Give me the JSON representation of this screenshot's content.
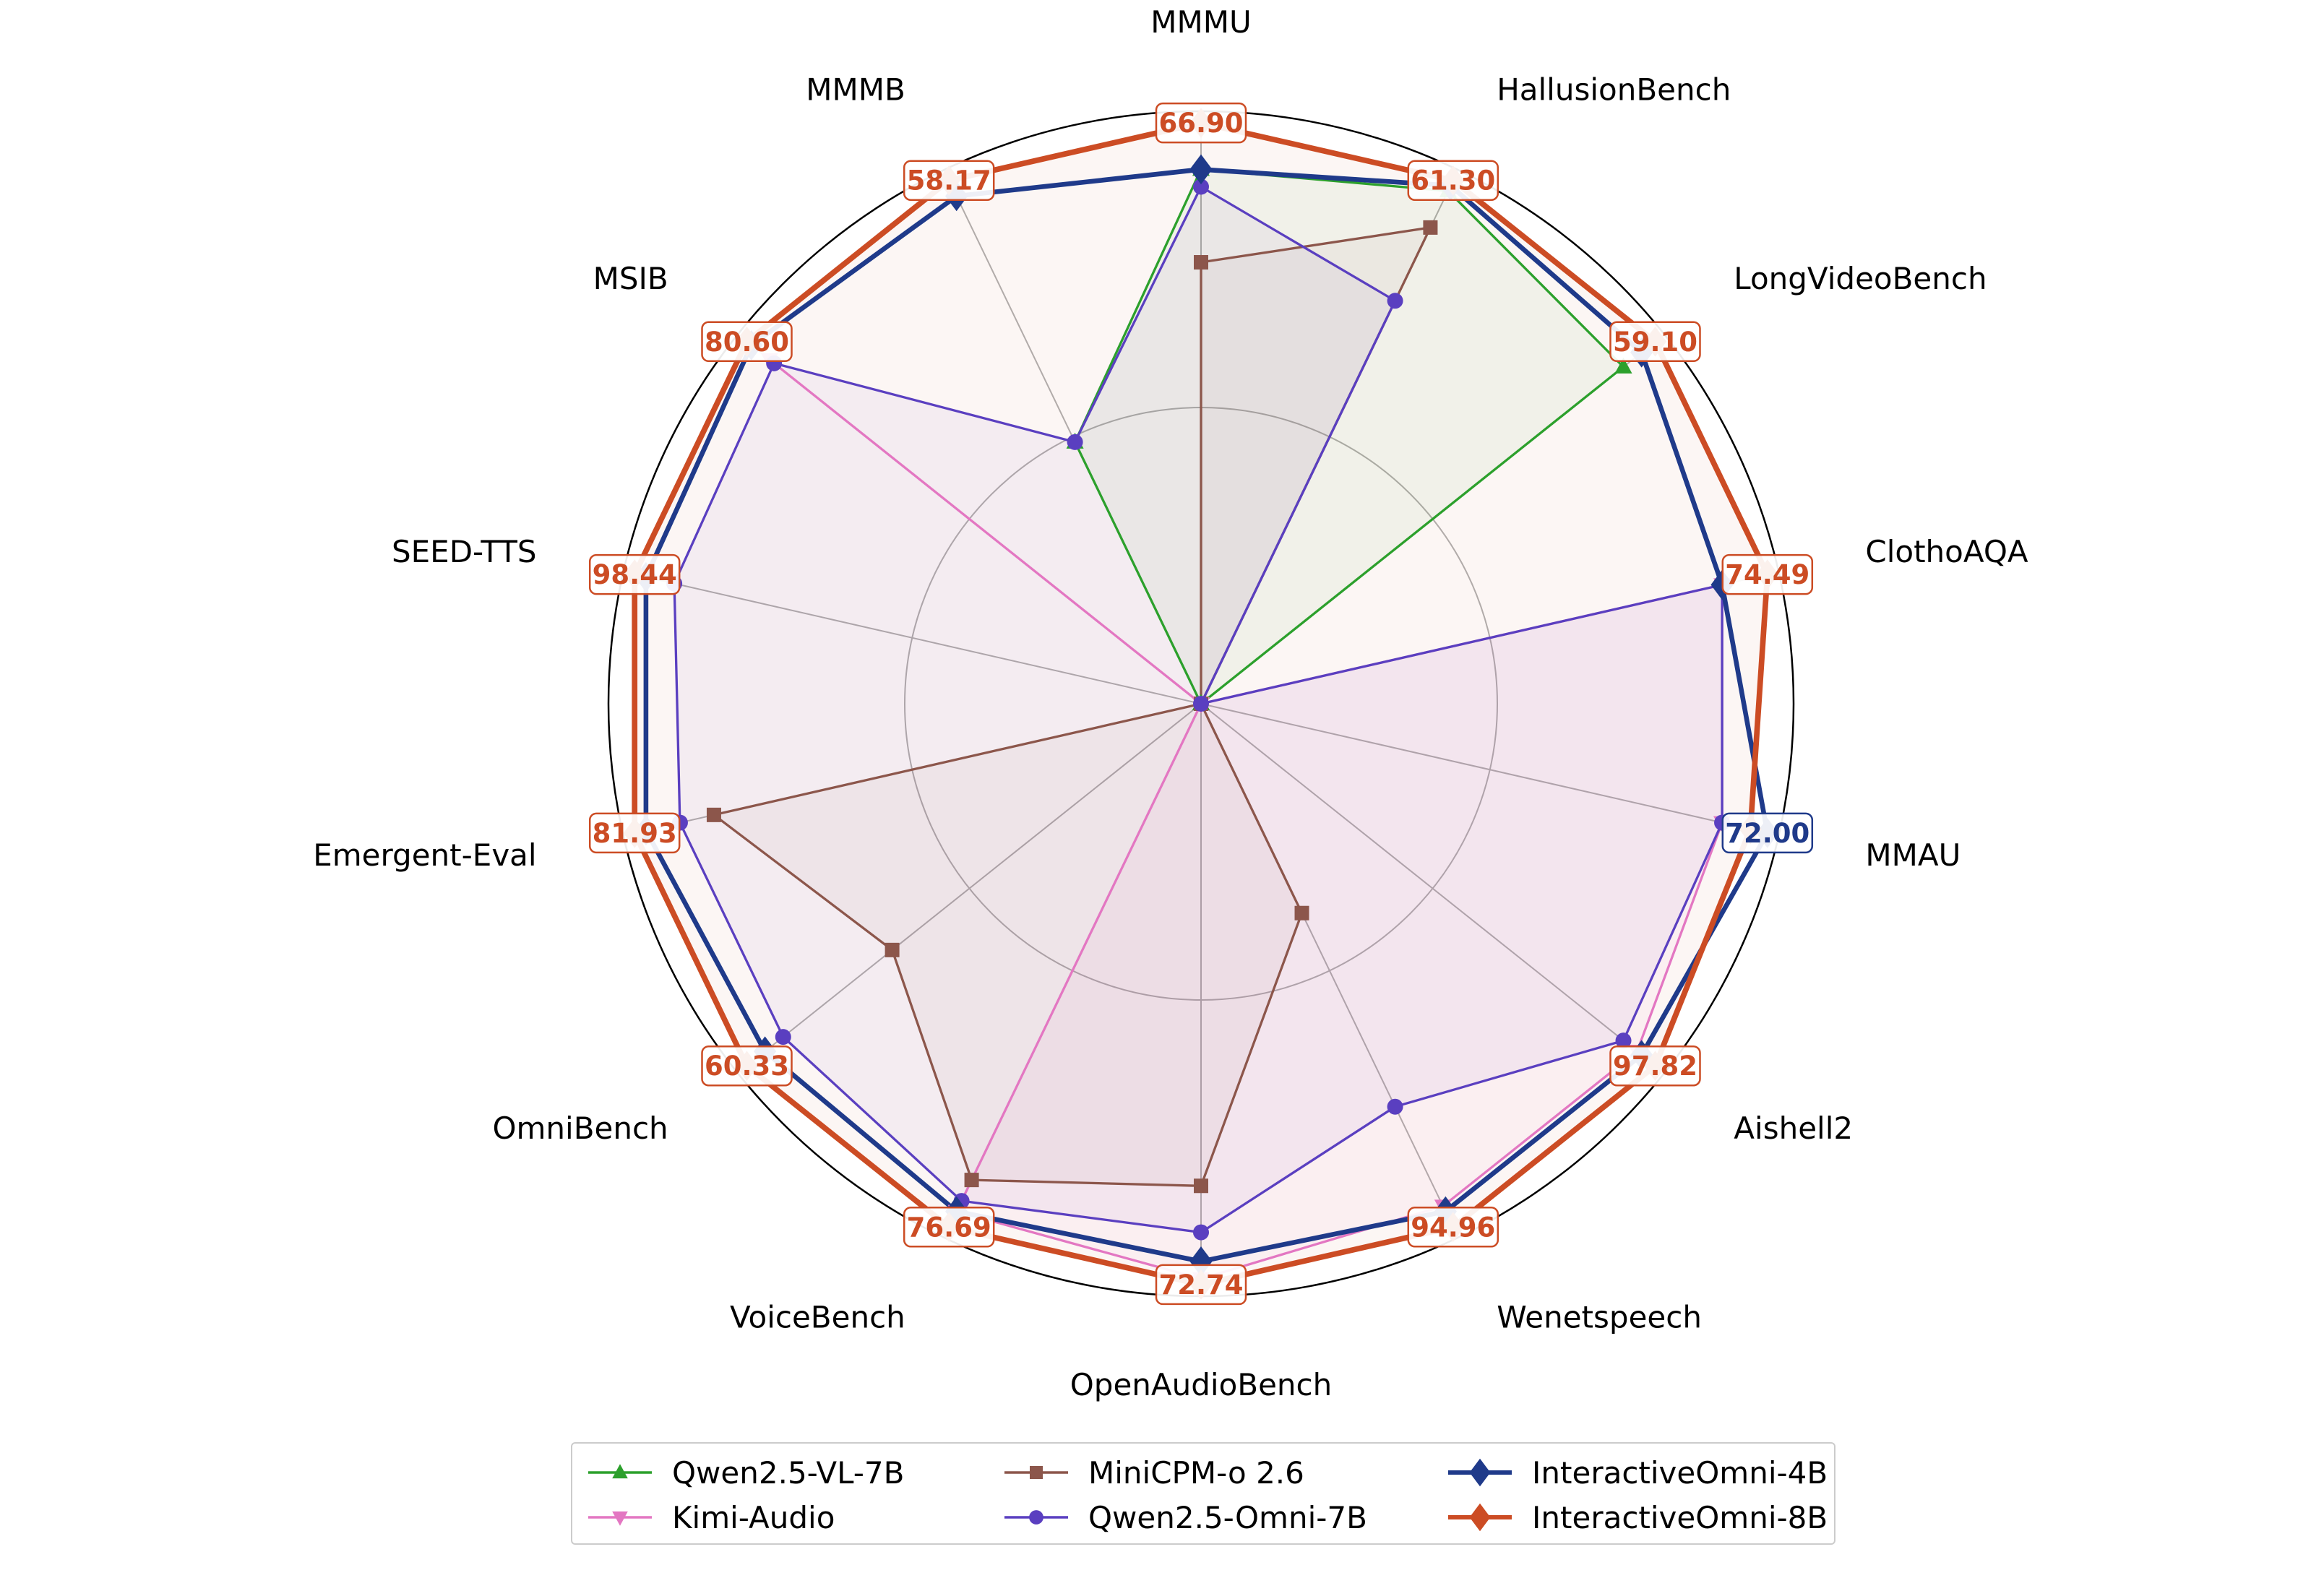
{
  "chart_data": {
    "type": "radar",
    "title": "",
    "axes": [
      "MMMU",
      "HallusionBench",
      "LongVideoBench",
      "ClothoAQA",
      "MMAU",
      "Aishell2",
      "Wenetspeech",
      "OpenAudioBench",
      "VoiceBench",
      "OmniBench",
      "Emergent-Eval",
      "SEED-TTS",
      "MSIB",
      "MMMB"
    ],
    "axis_max_labels": [
      "66.90",
      "61.30",
      "59.10",
      "74.49",
      "72.00",
      "97.82",
      "94.96",
      "72.74",
      "76.69",
      "60.33",
      "81.93",
      "98.44",
      "80.60",
      "58.17"
    ],
    "axis_max_label_owner": [
      "InteractiveOmni-8B",
      "InteractiveOmni-8B",
      "InteractiveOmni-8B",
      "InteractiveOmni-8B",
      "InteractiveOmni-4B",
      "InteractiveOmni-8B",
      "InteractiveOmni-8B",
      "InteractiveOmni-8B",
      "InteractiveOmni-8B",
      "InteractiveOmni-8B",
      "InteractiveOmni-8B",
      "InteractiveOmni-8B",
      "InteractiveOmni-8B",
      "InteractiveOmni-8B"
    ],
    "scale": "normalized to best model per axis",
    "rlim": [
      0,
      1.02
    ],
    "grid": true,
    "legend_position": "bottom",
    "series": [
      {
        "name": "Qwen2.5-VL-7B",
        "color": "#2ca02c",
        "marker": "triangle-up",
        "linewidth": 1.5,
        "fill_alpha": 0.05,
        "values": [
          0.92,
          0.98,
          0.93,
          0,
          0,
          0,
          0,
          0,
          0,
          0,
          0,
          0,
          0,
          0.5
        ]
      },
      {
        "name": "Kimi-Audio",
        "color": "#e377c2",
        "marker": "triangle-down",
        "linewidth": 1.5,
        "fill_alpha": 0.05,
        "values": [
          0,
          0,
          0,
          0.92,
          0.92,
          0.96,
          0.96,
          0.99,
          0.97,
          0,
          0,
          0,
          0.95,
          0
        ]
      },
      {
        "name": "MiniCPM-o 2.6",
        "color": "#8c564b",
        "marker": "square",
        "linewidth": 1.5,
        "fill_alpha": 0.05,
        "values": [
          0.76,
          0.91,
          0,
          0,
          0,
          0,
          0.4,
          0.83,
          0.91,
          0.68,
          0.86,
          0,
          0,
          0
        ]
      },
      {
        "name": "Qwen2.5-Omni-7B",
        "color": "#5a3fc0",
        "marker": "circle",
        "linewidth": 1.5,
        "fill_alpha": 0.05,
        "values": [
          0.89,
          0.77,
          0,
          0.92,
          0.92,
          0.93,
          0.77,
          0.91,
          0.95,
          0.92,
          0.92,
          0.93,
          0.94,
          0.5
        ]
      },
      {
        "name": "InteractiveOmni-4B",
        "color": "#1f3a8a",
        "marker": "diamond",
        "linewidth": 3,
        "fill_alpha": 0.0,
        "values": [
          0.92,
          0.99,
          0.97,
          0.92,
          1.0,
          0.97,
          0.97,
          0.96,
          0.97,
          0.96,
          0.98,
          0.98,
          0.99,
          0.97
        ]
      },
      {
        "name": "InteractiveOmni-8B",
        "color": "#cc4c24",
        "marker": "diamond",
        "linewidth": 3.5,
        "fill_alpha": 0.05,
        "values": [
          1,
          1,
          1,
          1,
          0.97,
          1,
          1,
          1,
          1,
          1,
          1,
          1,
          1,
          1
        ]
      }
    ]
  },
  "legend": {
    "items": [
      {
        "label": "Qwen2.5-VL-7B",
        "color": "#2ca02c",
        "marker": "triangle-up"
      },
      {
        "label": "Kimi-Audio",
        "color": "#e377c2",
        "marker": "triangle-down"
      },
      {
        "label": "MiniCPM-o 2.6",
        "color": "#8c564b",
        "marker": "square"
      },
      {
        "label": "Qwen2.5-Omni-7B",
        "color": "#5a3fc0",
        "marker": "circle"
      },
      {
        "label": "InteractiveOmni-4B",
        "color": "#1f3a8a",
        "marker": "diamond"
      },
      {
        "label": "InteractiveOmni-8B",
        "color": "#cc4c24",
        "marker": "diamond"
      }
    ]
  }
}
